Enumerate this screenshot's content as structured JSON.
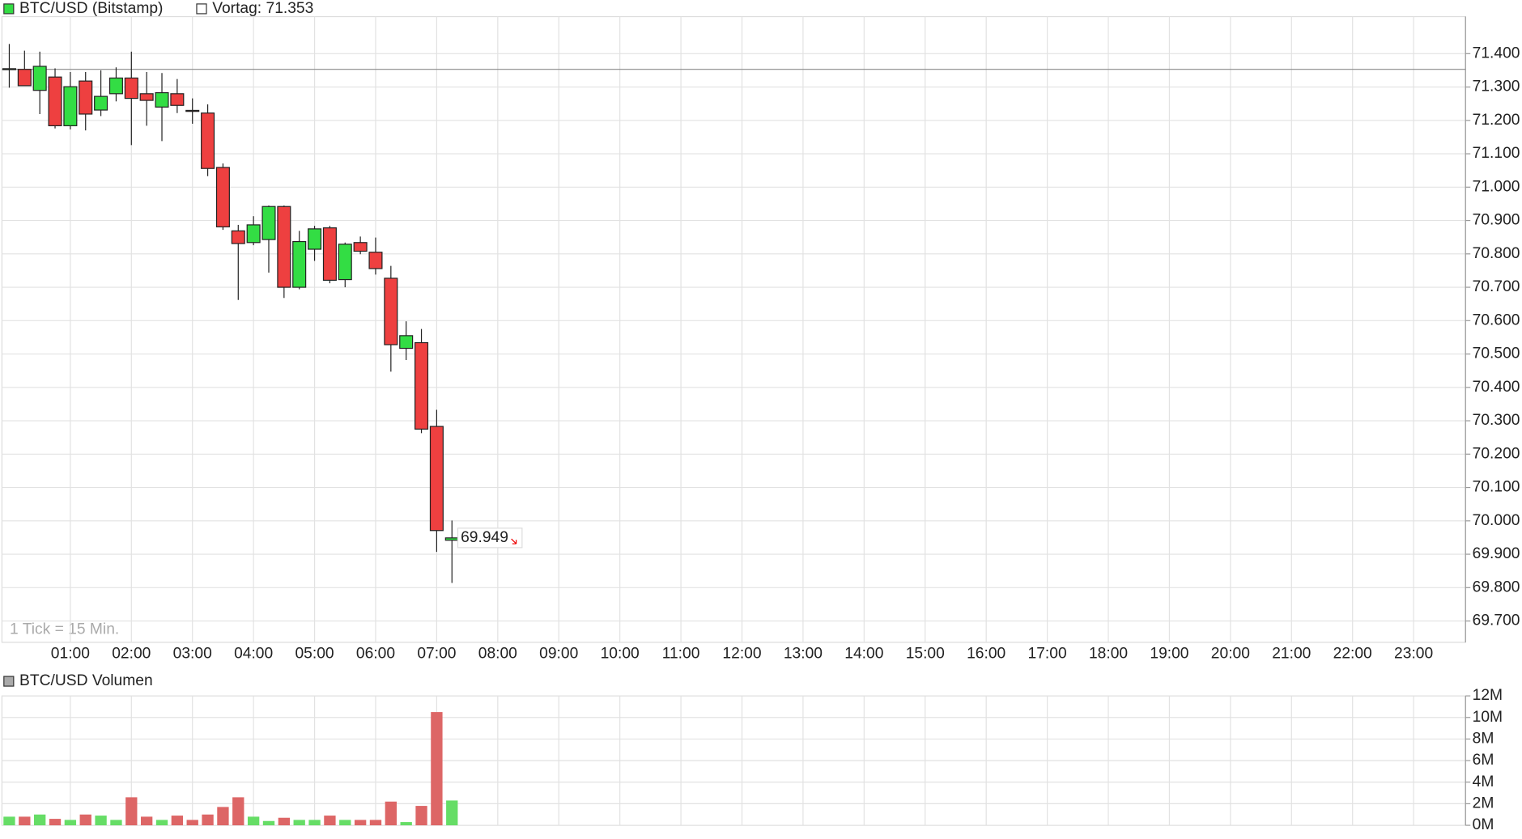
{
  "chart_data": [
    {
      "type": "candlestick",
      "title": "BTC/USD (Bitstamp)",
      "legend_color": "#33dd44",
      "reference": {
        "label": "Vortag: 71.353",
        "value": 71353,
        "color": "#888888"
      },
      "note": "1 Tick = 15 Min.",
      "last_price_label": "69.949",
      "up_color": "#33dd44",
      "down_color": "#ee4040",
      "x": [
        0,
        0.25,
        0.5,
        0.75,
        1,
        1.25,
        1.5,
        1.75,
        2,
        2.25,
        2.5,
        2.75,
        3,
        3.25,
        3.5,
        3.75,
        4,
        4.25,
        4.5,
        4.75,
        5,
        5.25,
        5.5,
        5.75,
        6,
        6.25,
        6.5,
        6.75,
        7,
        7.25
      ],
      "open": [
        71352,
        71353,
        71290,
        71330,
        71184,
        71318,
        71231,
        71280,
        71327,
        71280,
        71240,
        71280,
        71230,
        71222,
        71059,
        70869,
        70834,
        70843,
        70942,
        70700,
        70814,
        70878,
        70723,
        70834,
        70805,
        70727,
        70517,
        70534,
        70283,
        69942
      ],
      "high": [
        71429,
        71409,
        71406,
        71356,
        71345,
        71345,
        71350,
        71359,
        71406,
        71345,
        71342,
        71324,
        71266,
        71248,
        71071,
        70887,
        70913,
        70945,
        70945,
        70869,
        70884,
        70884,
        70834,
        70852,
        70849,
        70764,
        70598,
        70575,
        70333,
        70001
      ],
      "low": [
        71298,
        71304,
        71219,
        71176,
        71173,
        71170,
        71213,
        71257,
        71126,
        71184,
        71138,
        71222,
        71190,
        71033,
        70872,
        70662,
        70826,
        70744,
        70668,
        70694,
        70779,
        70712,
        70700,
        70799,
        70738,
        70447,
        70482,
        70263,
        69907,
        69814
      ],
      "close": [
        71355,
        71304,
        71362,
        71184,
        71301,
        71219,
        71272,
        71327,
        71266,
        71260,
        71283,
        71245,
        71227,
        71056,
        70881,
        70831,
        70887,
        70942,
        70700,
        70837,
        70875,
        70721,
        70829,
        70808,
        70756,
        70528,
        70555,
        70275,
        69971,
        69949
      ],
      "xlim": [
        -0.12,
        23.85
      ],
      "xticks": [
        {
          "value": 1,
          "label": "01:00"
        },
        {
          "value": 2,
          "label": "02:00"
        },
        {
          "value": 3,
          "label": "03:00"
        },
        {
          "value": 4,
          "label": "04:00"
        },
        {
          "value": 5,
          "label": "05:00"
        },
        {
          "value": 6,
          "label": "06:00"
        },
        {
          "value": 7,
          "label": "07:00"
        },
        {
          "value": 8,
          "label": "08:00"
        },
        {
          "value": 9,
          "label": "09:00"
        },
        {
          "value": 10,
          "label": "10:00"
        },
        {
          "value": 11,
          "label": "11:00"
        },
        {
          "value": 12,
          "label": "12:00"
        },
        {
          "value": 13,
          "label": "13:00"
        },
        {
          "value": 14,
          "label": "14:00"
        },
        {
          "value": 15,
          "label": "15:00"
        },
        {
          "value": 16,
          "label": "16:00"
        },
        {
          "value": 17,
          "label": "17:00"
        },
        {
          "value": 18,
          "label": "18:00"
        },
        {
          "value": 19,
          "label": "19:00"
        },
        {
          "value": 20,
          "label": "20:00"
        },
        {
          "value": 21,
          "label": "21:00"
        },
        {
          "value": 22,
          "label": "22:00"
        },
        {
          "value": 23,
          "label": "23:00"
        }
      ],
      "ylim": [
        69636,
        71511
      ],
      "yticks": [
        {
          "value": 69700,
          "label": "69.700"
        },
        {
          "value": 69800,
          "label": "69.800"
        },
        {
          "value": 69900,
          "label": "69.900"
        },
        {
          "value": 70000,
          "label": "70.000"
        },
        {
          "value": 70100,
          "label": "70.100"
        },
        {
          "value": 70200,
          "label": "70.200"
        },
        {
          "value": 70300,
          "label": "70.300"
        },
        {
          "value": 70400,
          "label": "70.400"
        },
        {
          "value": 70500,
          "label": "70.500"
        },
        {
          "value": 70600,
          "label": "70.600"
        },
        {
          "value": 70700,
          "label": "70.700"
        },
        {
          "value": 70800,
          "label": "70.800"
        },
        {
          "value": 70900,
          "label": "70.900"
        },
        {
          "value": 71000,
          "label": "71.000"
        },
        {
          "value": 71100,
          "label": "71.100"
        },
        {
          "value": 71200,
          "label": "71.200"
        },
        {
          "value": 71300,
          "label": "71.300"
        },
        {
          "value": 71400,
          "label": "71.400"
        }
      ],
      "grid": true
    },
    {
      "type": "bar",
      "title": "BTC/USD Volumen",
      "legend_color": "#aaaaaa",
      "up_color": "#66dd66",
      "down_color": "#dd6666",
      "values": [
        0.8,
        0.8,
        1.0,
        0.6,
        0.5,
        1.0,
        0.9,
        0.5,
        2.6,
        0.8,
        0.5,
        0.9,
        0.5,
        1.0,
        1.7,
        2.6,
        0.8,
        0.4,
        0.7,
        0.5,
        0.5,
        0.9,
        0.5,
        0.5,
        0.5,
        2.2,
        0.3,
        1.8,
        10.5,
        2.3
      ],
      "ylim": [
        0,
        12
      ],
      "yticks": [
        {
          "value": 0,
          "label": "0M"
        },
        {
          "value": 2,
          "label": "2M"
        },
        {
          "value": 4,
          "label": "4M"
        },
        {
          "value": 6,
          "label": "6M"
        },
        {
          "value": 8,
          "label": "8M"
        },
        {
          "value": 10,
          "label": "10M"
        },
        {
          "value": 12,
          "label": "12M"
        }
      ],
      "grid": true
    }
  ]
}
